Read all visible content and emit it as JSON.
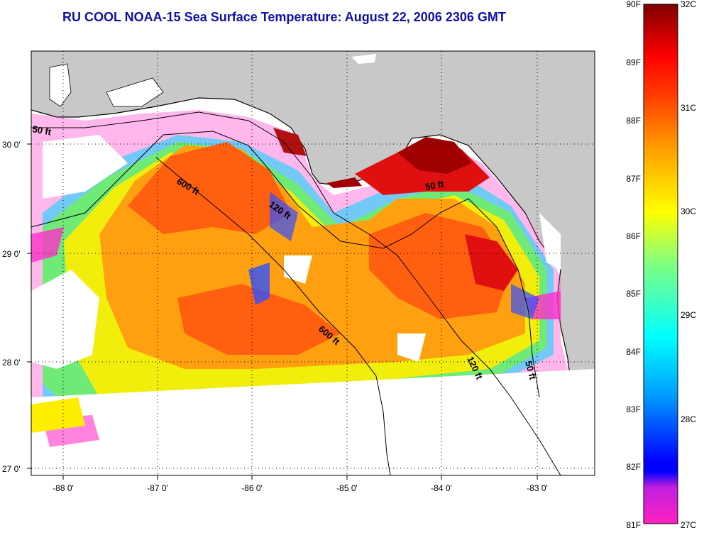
{
  "title": "RU COOL  NOAA-15  Sea Surface Temperature:  August 22, 2006 2306 GMT",
  "map": {
    "lat_ticks": [
      "30 0'",
      "29 0'",
      "28 0'",
      "27 0'"
    ],
    "lon_ticks": [
      "-88 0'",
      "-87 0'",
      "-86 0'",
      "-85 0'",
      "-84 0'",
      "-83 0'"
    ],
    "contours": [
      {
        "label": "50 ft"
      },
      {
        "label": "600 ft"
      },
      {
        "label": "120 ft"
      },
      {
        "label": "50 ft"
      },
      {
        "label": "600 ft"
      },
      {
        "label": "120 ft"
      },
      {
        "label": "50 ft"
      }
    ],
    "land_color": "#c8c8c8",
    "nodata_color": "#ffffff"
  },
  "colorbar": {
    "fahrenheit_labels": [
      "90F",
      "89F",
      "88F",
      "87F",
      "86F",
      "85F",
      "84F",
      "83F",
      "82F",
      "81F"
    ],
    "celsius_labels": [
      "32C",
      "31C",
      "30C",
      "29C",
      "28C",
      "27C"
    ],
    "stops": [
      "#ff20c0",
      "#a020f0",
      "#0000ff",
      "#00a0ff",
      "#00ffff",
      "#80ff80",
      "#ffff00",
      "#ffa000",
      "#ff4000",
      "#ff0000",
      "#800000"
    ]
  }
}
